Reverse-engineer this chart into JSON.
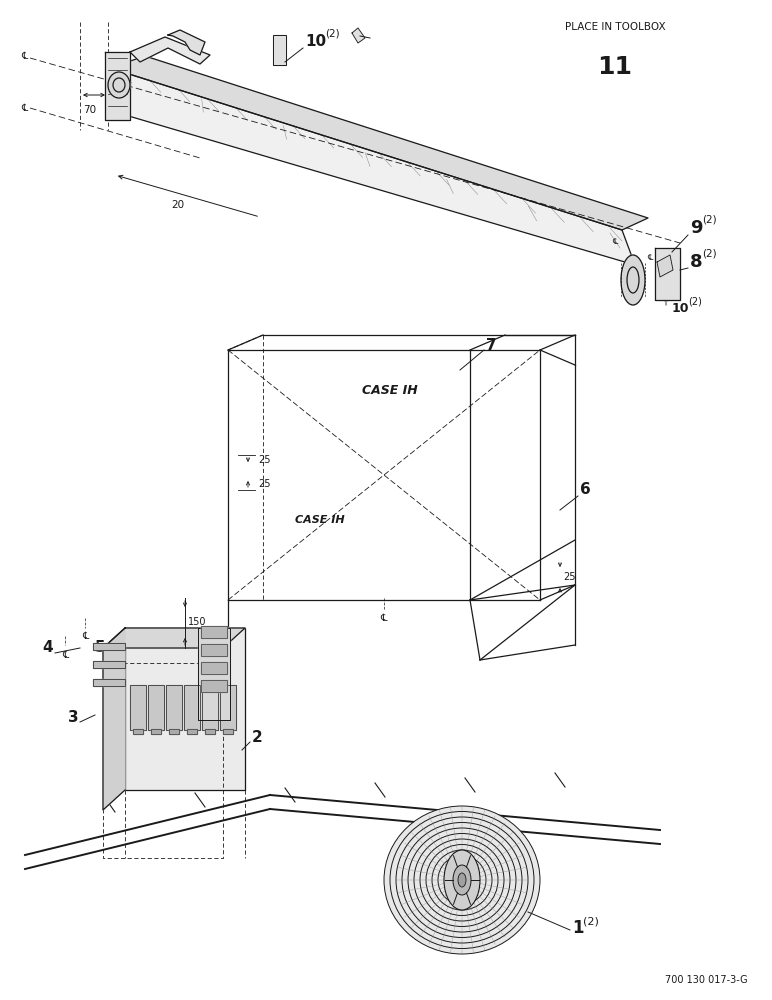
{
  "background_color": "#ffffff",
  "text_color": "#222222",
  "place_in_toolbox_text": "PLACE IN TOOLBOX",
  "place_in_toolbox_number": "11",
  "footer_text": "700 130 017-3-G"
}
